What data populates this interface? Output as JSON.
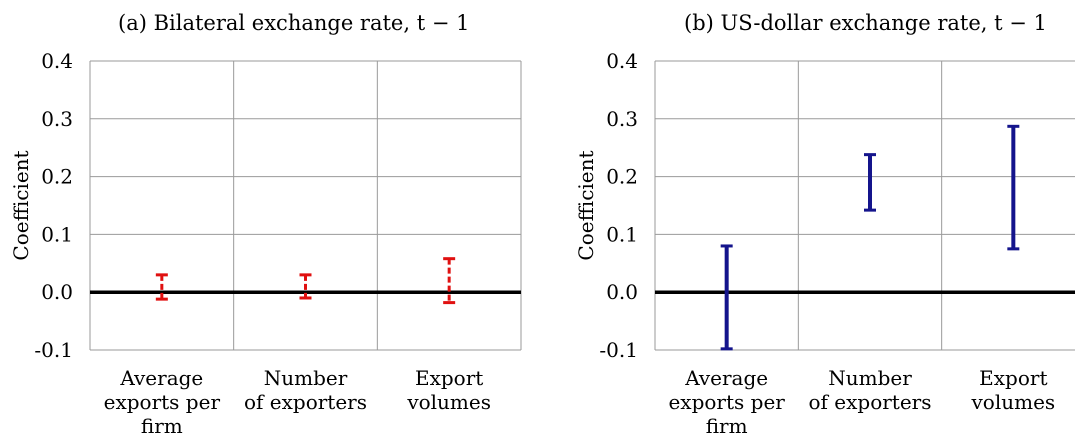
{
  "chart_data": [
    {
      "type": "errorbar",
      "title": "(a) Bilateral exchange rate, t − 1",
      "ylabel": "Coefficient",
      "ylim": [
        -0.1,
        0.4
      ],
      "yticks": [
        "-0.1",
        "0.0",
        "0.1",
        "0.2",
        "0.3",
        "0.4"
      ],
      "categories": [
        [
          "Average",
          "exports per",
          "firm"
        ],
        [
          "Number",
          "of exporters"
        ],
        [
          "Export",
          "volumes"
        ]
      ],
      "intervals": [
        {
          "low": -0.012,
          "high": 0.03
        },
        {
          "low": -0.01,
          "high": 0.03
        },
        {
          "low": -0.018,
          "high": 0.058
        }
      ],
      "zero_line": true,
      "grid": true,
      "style": "dashed",
      "color": "#e01010"
    },
    {
      "type": "errorbar",
      "title": "(b) US-dollar exchange rate, t − 1",
      "ylabel": "Coefficient",
      "ylim": [
        -0.1,
        0.4
      ],
      "yticks": [
        "-0.1",
        "0.0",
        "0.1",
        "0.2",
        "0.3",
        "0.4"
      ],
      "categories": [
        [
          "Average",
          "exports per",
          "firm"
        ],
        [
          "Number",
          "of exporters"
        ],
        [
          "Export",
          "volumes"
        ]
      ],
      "intervals": [
        {
          "low": -0.098,
          "high": 0.08
        },
        {
          "low": 0.142,
          "high": 0.238
        },
        {
          "low": 0.075,
          "high": 0.287
        }
      ],
      "zero_line": true,
      "grid": true,
      "style": "solid",
      "color": "#14148c"
    }
  ]
}
